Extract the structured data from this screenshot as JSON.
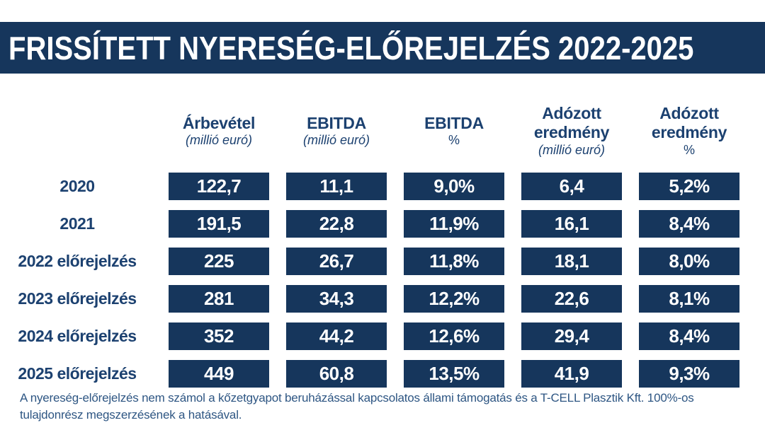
{
  "title": "FRISSÍTETT NYERESÉG-ELŐREJELZÉS 2022-2025",
  "colors": {
    "navy_fill": "#16365C",
    "header_text": "#1C4170",
    "footnote_text": "#2E5683",
    "title_text": "#FFFFFF",
    "background": "#FFFFFF"
  },
  "chart_data": {
    "type": "table",
    "title": "FRISSÍTETT NYERESÉG-ELŐREJELZÉS 2022-2025",
    "columns": [
      {
        "label": "Árbevétel",
        "sub": "(millió euró)"
      },
      {
        "label": "EBITDA",
        "sub": "(millió euró)"
      },
      {
        "label": "EBITDA",
        "sub": "%"
      },
      {
        "label": "Adózott eredmény",
        "sub": "(millió euró)"
      },
      {
        "label": "Adózott eredmény",
        "sub": "%"
      }
    ],
    "rows": [
      {
        "label": "2020",
        "values": [
          "122,7",
          "11,1",
          "9,0%",
          "6,4",
          "5,2%"
        ]
      },
      {
        "label": "2021",
        "values": [
          "191,5",
          "22,8",
          "11,9%",
          "16,1",
          "8,4%"
        ]
      },
      {
        "label": "2022 előrejelzés",
        "values": [
          "225",
          "26,7",
          "11,8%",
          "18,1",
          "8,0%"
        ]
      },
      {
        "label": "2023 előrejelzés",
        "values": [
          "281",
          "34,3",
          "12,2%",
          "22,6",
          "8,1%"
        ]
      },
      {
        "label": "2024 előrejelzés",
        "values": [
          "352",
          "44,2",
          "12,6%",
          "29,4",
          "8,4%"
        ]
      },
      {
        "label": "2025 előrejelzés",
        "values": [
          "449",
          "60,8",
          "13,5%",
          "41,9",
          "9,3%"
        ]
      }
    ]
  },
  "footnote": "A nyereség-előrejelzés nem számol a kőzetgyapot beruházással kapcsolatos állami támogatás és a T-CELL Plasztik Kft. 100%-os tulajdonrész megszerzésének a hatásával."
}
